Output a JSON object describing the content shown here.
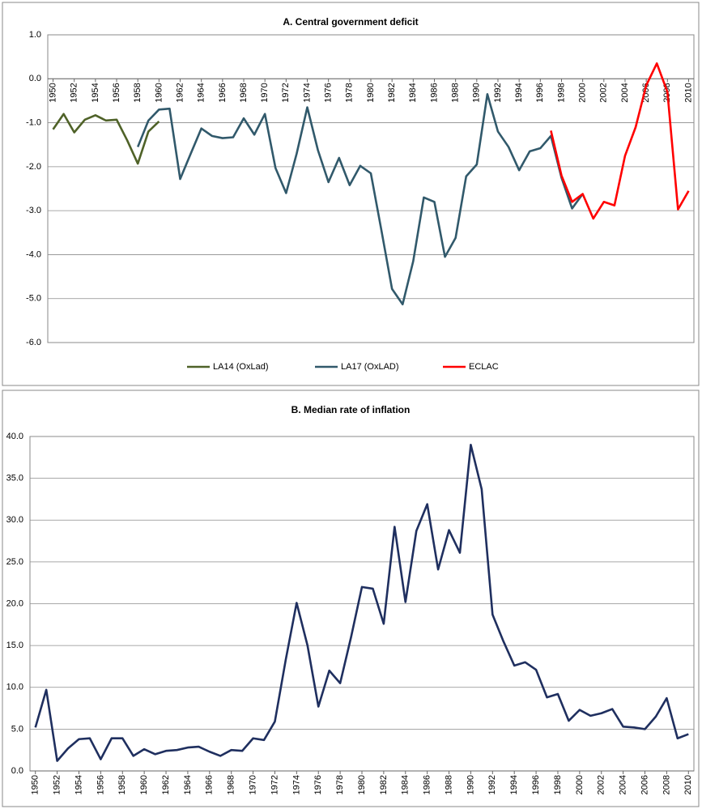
{
  "chart_data": [
    {
      "type": "line",
      "title": "A. Central government deficit",
      "x": [
        1950,
        1951,
        1952,
        1953,
        1954,
        1955,
        1956,
        1957,
        1958,
        1959,
        1960,
        1961,
        1962,
        1963,
        1964,
        1965,
        1966,
        1967,
        1968,
        1969,
        1970,
        1971,
        1972,
        1973,
        1974,
        1975,
        1976,
        1977,
        1978,
        1979,
        1980,
        1981,
        1982,
        1983,
        1984,
        1985,
        1986,
        1987,
        1988,
        1989,
        1990,
        1991,
        1992,
        1993,
        1994,
        1995,
        1996,
        1997,
        1998,
        1999,
        2000,
        2001,
        2002,
        2003,
        2004,
        2005,
        2006,
        2007,
        2008,
        2009,
        2010
      ],
      "series": [
        {
          "name": "LA14 (OxLad)",
          "color": "#4f6228",
          "values": [
            -1.15,
            -0.8,
            -1.22,
            -0.93,
            -0.83,
            -0.95,
            -0.93,
            -1.4,
            -1.93,
            -1.2,
            -0.97,
            null,
            null,
            null,
            null,
            null,
            null,
            null,
            null,
            null,
            null,
            null,
            null,
            null,
            null,
            null,
            null,
            null,
            null,
            null,
            null,
            null,
            null,
            null,
            null,
            null,
            null,
            null,
            null,
            null,
            null,
            null,
            null,
            null,
            null,
            null,
            null,
            null,
            null,
            null,
            null,
            null,
            null,
            null,
            null,
            null,
            null,
            null,
            null,
            null,
            null
          ]
        },
        {
          "name": "LA17 (OxLAD)",
          "color": "#31596b",
          "values": [
            null,
            null,
            null,
            null,
            null,
            null,
            null,
            null,
            -1.55,
            -0.95,
            -0.7,
            -0.68,
            -2.28,
            -1.7,
            -1.13,
            -1.3,
            -1.35,
            -1.33,
            -0.9,
            -1.27,
            -0.8,
            -2.03,
            -2.6,
            -1.7,
            -0.65,
            -1.62,
            -2.35,
            -1.8,
            -2.42,
            -1.98,
            -2.15,
            -3.45,
            -4.78,
            -5.13,
            -4.15,
            -2.7,
            -2.8,
            -4.05,
            -3.62,
            -2.22,
            -1.95,
            -0.35,
            -1.2,
            -1.55,
            -2.08,
            -1.65,
            -1.58,
            -1.3,
            -2.25,
            -2.95,
            -2.62,
            null,
            null,
            null,
            null,
            null,
            null,
            null,
            null,
            null,
            null
          ]
        },
        {
          "name": "ECLAC",
          "color": "#ff0000",
          "values": [
            null,
            null,
            null,
            null,
            null,
            null,
            null,
            null,
            null,
            null,
            null,
            null,
            null,
            null,
            null,
            null,
            null,
            null,
            null,
            null,
            null,
            null,
            null,
            null,
            null,
            null,
            null,
            null,
            null,
            null,
            null,
            null,
            null,
            null,
            null,
            null,
            null,
            null,
            null,
            null,
            null,
            null,
            null,
            null,
            null,
            null,
            null,
            -1.18,
            -2.2,
            -2.8,
            -2.62,
            -3.18,
            -2.8,
            -2.88,
            -1.75,
            -1.1,
            -0.15,
            0.35,
            -0.3,
            -2.97,
            -2.55
          ]
        }
      ],
      "xlim": [
        1949.5,
        2010.5
      ],
      "xticks": [
        1950,
        1952,
        1954,
        1956,
        1958,
        1960,
        1962,
        1964,
        1966,
        1968,
        1970,
        1972,
        1974,
        1976,
        1978,
        1980,
        1982,
        1984,
        1986,
        1988,
        1990,
        1992,
        1994,
        1996,
        1998,
        2000,
        2002,
        2004,
        2006,
        2008,
        2010
      ],
      "ylim": [
        -6,
        1
      ],
      "yticks": [
        {
          "value": 1,
          "label": "1.0"
        },
        {
          "value": 0,
          "label": "0.0"
        },
        {
          "value": -1,
          "label": "-1.0"
        },
        {
          "value": -2,
          "label": "-2.0"
        },
        {
          "value": -3,
          "label": "-3.0"
        },
        {
          "value": -4,
          "label": "-4.0"
        },
        {
          "value": -5,
          "label": "-5.0"
        },
        {
          "value": -6,
          "label": "-6.0"
        }
      ],
      "grid": true,
      "legend": "bottom"
    },
    {
      "type": "line",
      "title": "B. Median rate of inflation",
      "x": [
        1950,
        1951,
        1952,
        1953,
        1954,
        1955,
        1956,
        1957,
        1958,
        1959,
        1960,
        1961,
        1962,
        1963,
        1964,
        1965,
        1966,
        1967,
        1968,
        1969,
        1970,
        1971,
        1972,
        1973,
        1974,
        1975,
        1976,
        1977,
        1978,
        1979,
        1980,
        1981,
        1982,
        1983,
        1984,
        1985,
        1986,
        1987,
        1988,
        1989,
        1990,
        1991,
        1992,
        1993,
        1994,
        1995,
        1996,
        1997,
        1998,
        1999,
        2000,
        2001,
        2002,
        2003,
        2004,
        2005,
        2006,
        2007,
        2008,
        2009,
        2010
      ],
      "values": [
        5.2,
        9.7,
        1.2,
        2.7,
        3.8,
        3.9,
        1.4,
        3.9,
        3.9,
        1.8,
        2.6,
        2.0,
        2.4,
        2.5,
        2.8,
        2.9,
        2.3,
        1.8,
        2.5,
        2.4,
        3.9,
        3.7,
        5.9,
        13.3,
        20.1,
        15.0,
        7.7,
        12.0,
        10.5,
        16.0,
        22.0,
        21.8,
        17.6,
        29.2,
        20.2,
        28.7,
        31.9,
        24.1,
        28.8,
        26.1,
        39.0,
        33.7,
        18.7,
        15.5,
        12.6,
        13.0,
        12.1,
        8.8,
        9.2,
        6.0,
        7.3,
        6.6,
        6.9,
        7.4,
        5.3,
        5.2,
        5.0,
        6.5,
        8.7,
        3.9,
        4.4
      ],
      "color": "#1f2f5f",
      "xlim": [
        1949.5,
        2010.5
      ],
      "xticks": [
        1950,
        1952,
        1954,
        1956,
        1958,
        1960,
        1962,
        1964,
        1966,
        1968,
        1970,
        1972,
        1974,
        1976,
        1978,
        1980,
        1982,
        1984,
        1986,
        1988,
        1990,
        1992,
        1994,
        1996,
        1998,
        2000,
        2002,
        2004,
        2006,
        2008,
        2010
      ],
      "ylim": [
        0,
        40
      ],
      "yticks": [
        {
          "value": 0,
          "label": "0.0"
        },
        {
          "value": 5,
          "label": "5.0"
        },
        {
          "value": 10,
          "label": "10.0"
        },
        {
          "value": 15,
          "label": "15.0"
        },
        {
          "value": 20,
          "label": "20.0"
        },
        {
          "value": 25,
          "label": "25.0"
        },
        {
          "value": 30,
          "label": "30.0"
        },
        {
          "value": 35,
          "label": "35.0"
        },
        {
          "value": 40,
          "label": "40.0"
        }
      ],
      "grid": true
    }
  ]
}
